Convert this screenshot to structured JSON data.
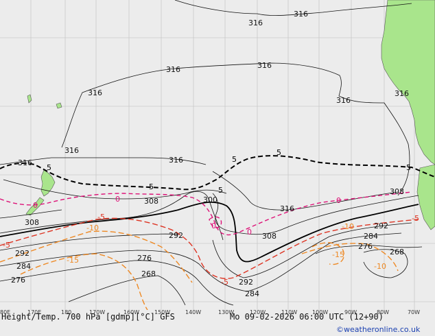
{
  "map": {
    "background_color": "#ececec",
    "land_color": "#a9e58c",
    "height_color": "#000000",
    "temp_colors": {
      "warm": "#dd1177",
      "zero": "#dd1177",
      "minus5": "#dd3322",
      "minus10": "#ee8822",
      "minus15": "#ee8822"
    },
    "longitude_labels": [
      "80E",
      "170E",
      "180",
      "170W",
      "160W",
      "150W",
      "140W",
      "130W",
      "120W",
      "110W",
      "100W",
      "90W",
      "80W",
      "70W"
    ],
    "height_labels": {
      "h316_a": "316",
      "h316_b": "316",
      "h316_c": "316",
      "h316_d": "316",
      "h316_e": "316",
      "h316_f": "316",
      "h316_g": "316",
      "h316_h": "316",
      "h316_i": "316",
      "h316_j": "316",
      "h316_k": "316",
      "h308_a": "308",
      "h308_b": "308",
      "h308_c": "308",
      "h308_d": "308",
      "h300": "300",
      "h292_a": "292",
      "h292_b": "292",
      "h292_c": "292",
      "h292_d": "292",
      "h284_a": "284",
      "h284_b": "284",
      "h284_c": "284",
      "h276_a": "276",
      "h276_b": "276",
      "h276_c": "276",
      "h268_a": "268",
      "h268_b": "268"
    },
    "temp_labels": {
      "t5_a": "5",
      "t5_b": "5",
      "t5_c": "5",
      "t5_d": "5",
      "t5_e": "5",
      "t5_f": "5",
      "t0_a": "0",
      "t0_b": "0",
      "t0_c": "0",
      "t0_d": "0",
      "t0_e": "0",
      "tm5_a": "-5",
      "tm5_b": "-5",
      "tm5_c": "-5",
      "tm5_d": "-5",
      "tm10_a": "-10",
      "tm10_b": "-10",
      "tm10_c": "-10",
      "tm15_a": "-15",
      "tm15_b": "-15"
    }
  },
  "footer": {
    "title": "Height/Temp. 700 hPa [gdmp][°C] GFS",
    "valid_time": "Mo 09-02-2026 06:00 UTC (12+90)",
    "credit": "©weatheronline.co.uk"
  }
}
